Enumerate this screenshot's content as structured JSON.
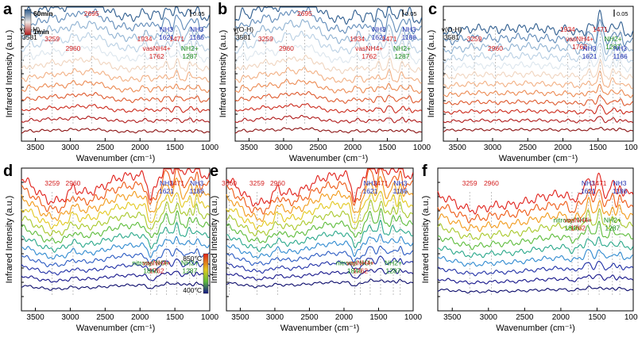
{
  "chart_data": [
    {
      "panel": "a",
      "type": "line",
      "xlabel": "Wavenumber (cm⁻¹)",
      "ylabel": "Infrared Intensity (a.u.)",
      "xlim": [
        3700,
        1000
      ],
      "xticks": [
        3500,
        3000,
        2500,
        2000,
        1500,
        1000
      ],
      "scale_bar": "0.05",
      "num_series": 12,
      "series_colors": [
        "#8a1010",
        "#b01a1a",
        "#cc2a1c",
        "#de5a2e",
        "#ec8a52",
        "#f2b084",
        "#f0d4be",
        "#dce6ee",
        "#b9d0e4",
        "#8fb2d2",
        "#5f8ab8",
        "#2d5c8e"
      ],
      "legend_time": [
        "60min",
        "1min"
      ],
      "peaks": [
        {
          "x": 3581,
          "label": "v(O-H)",
          "sub": "3581"
        },
        {
          "x": 3259,
          "label": "3259"
        },
        {
          "x": 2960,
          "label": "2960"
        },
        {
          "x": 2695,
          "label": "2695"
        },
        {
          "x": 1934,
          "label": "1934"
        },
        {
          "x": 1762,
          "label": "vasNH4+",
          "sub": "1762"
        },
        {
          "x": 1621,
          "label": "NH3",
          "sub": "1621"
        },
        {
          "x": 1471,
          "label": "1471"
        },
        {
          "x": 1287,
          "label": "NH2+",
          "sub": "1287"
        },
        {
          "x": 1186,
          "label": "NH3",
          "sub": "1186"
        }
      ]
    },
    {
      "panel": "b",
      "type": "line",
      "xlabel": "Wavenumber (cm⁻¹)",
      "ylabel": "Infrared Intensity (a.u.)",
      "xlim": [
        3700,
        1000
      ],
      "xticks": [
        3500,
        3000,
        2500,
        2000,
        1500,
        1000
      ],
      "scale_bar": "0.05",
      "num_series": 12,
      "peaks": [
        {
          "x": 3581,
          "label": "v(O-H)",
          "sub": "3581"
        },
        {
          "x": 3259,
          "label": "3259"
        },
        {
          "x": 2960,
          "label": "2960"
        },
        {
          "x": 2695,
          "label": "2695"
        },
        {
          "x": 1934,
          "label": "1934"
        },
        {
          "x": 1762,
          "label": "vasNH4+",
          "sub": "1762"
        },
        {
          "x": 1621,
          "label": "NH3",
          "sub": "1621"
        },
        {
          "x": 1471,
          "label": "1471"
        },
        {
          "x": 1287,
          "label": "NH2+",
          "sub": "1287"
        },
        {
          "x": 1186,
          "label": "NH3",
          "sub": "1186"
        }
      ]
    },
    {
      "panel": "c",
      "type": "line",
      "xlabel": "Wavenumber (cm⁻¹)",
      "ylabel": "Infrared Intensity (a.u.)",
      "xlim": [
        3700,
        1000
      ],
      "xticks": [
        3500,
        3000,
        2500,
        2000,
        1500,
        1000
      ],
      "scale_bar": "0.05",
      "num_series": 12,
      "peaks": [
        {
          "x": 3581,
          "label": "v(O-H)",
          "sub": "3581"
        },
        {
          "x": 3259,
          "label": "3259"
        },
        {
          "x": 2960,
          "label": "2960"
        },
        {
          "x": 1934,
          "label": "1934"
        },
        {
          "x": 1762,
          "label": "vasNH4+",
          "sub": "1762"
        },
        {
          "x": 1621,
          "label": "NH3",
          "sub": "1621"
        },
        {
          "x": 1471,
          "label": "1471"
        },
        {
          "x": 1287,
          "label": "NH2+",
          "sub": "1287"
        },
        {
          "x": 1186,
          "label": "NH3",
          "sub": "1186"
        }
      ]
    },
    {
      "panel": "d",
      "type": "line",
      "xlabel": "Wavenumber (cm⁻¹)",
      "ylabel": "Infrared Intensity (a.u.)",
      "xlim": [
        3700,
        1000
      ],
      "xticks": [
        3500,
        3000,
        2500,
        2000,
        1500,
        1000
      ],
      "num_series": 12,
      "series_colors": [
        "#0a0a6a",
        "#14148a",
        "#1f2fa6",
        "#2a5ac2",
        "#2f8ad0",
        "#2aa88a",
        "#5cbc3a",
        "#a8c82a",
        "#e2c81e",
        "#f29a1a",
        "#ee5a16",
        "#e0201a"
      ],
      "legend_temp": [
        "850°C",
        "400°C"
      ],
      "peaks": [
        {
          "x": 3259,
          "label": "3259"
        },
        {
          "x": 2960,
          "label": "2960"
        },
        {
          "x": 1846,
          "label": "nitrosyl NO+",
          "sub": "1846"
        },
        {
          "x": 1762,
          "label": "vasNH4+",
          "sub": "1762"
        },
        {
          "x": 1621,
          "label": "NH3",
          "sub": "1621"
        },
        {
          "x": 1471,
          "label": "1471"
        },
        {
          "x": 1287,
          "label": "NH2+",
          "sub": "1287"
        },
        {
          "x": 1186,
          "label": "NH3",
          "sub": "1186"
        }
      ]
    },
    {
      "panel": "e",
      "type": "line",
      "xlabel": "Wavenumber (cm⁻¹)",
      "ylabel": "Infrared Intensity (a.u.)",
      "xlim": [
        3700,
        1000
      ],
      "xticks": [
        3500,
        3000,
        2500,
        2000,
        1500,
        1000
      ],
      "num_series": 12,
      "peaks": [
        {
          "x": 3660,
          "label": "3660"
        },
        {
          "x": 3259,
          "label": "3259"
        },
        {
          "x": 2960,
          "label": "2960"
        },
        {
          "x": 1846,
          "label": "nitrosyl NO+",
          "sub": "1846"
        },
        {
          "x": 1762,
          "label": "vasNH4+",
          "sub": "1762"
        },
        {
          "x": 1621,
          "label": "NH3",
          "sub": "1621"
        },
        {
          "x": 1471,
          "label": "1471"
        },
        {
          "x": 1287,
          "label": "NH2+",
          "sub": "1287"
        },
        {
          "x": 1186,
          "label": "NH3",
          "sub": "1186"
        }
      ]
    },
    {
      "panel": "f",
      "type": "line",
      "xlabel": "Wavenumber (cm⁻¹)",
      "ylabel": "Infrared Intensity (a.u.)",
      "xlim": [
        3700,
        1000
      ],
      "xticks": [
        3500,
        3000,
        2500,
        2000,
        1500,
        1000
      ],
      "num_series": 10,
      "peaks": [
        {
          "x": 3259,
          "label": "3259"
        },
        {
          "x": 2960,
          "label": "2960"
        },
        {
          "x": 1846,
          "label": "nitrosyl NO+",
          "sub": "1846"
        },
        {
          "x": 1762,
          "label": "vasNH4+",
          "sub": "1762"
        },
        {
          "x": 1621,
          "label": "NH3",
          "sub": "1621"
        },
        {
          "x": 1471,
          "label": "1471"
        },
        {
          "x": 1287,
          "label": "NH2+",
          "sub": "1287"
        },
        {
          "x": 1186,
          "label": "NH3",
          "sub": "1186"
        }
      ]
    }
  ],
  "colors": {
    "red_label": "#d42020",
    "blue_label": "#2030b0",
    "green_label": "#1a8a1a",
    "axis": "#000000",
    "dash": "#999999"
  }
}
